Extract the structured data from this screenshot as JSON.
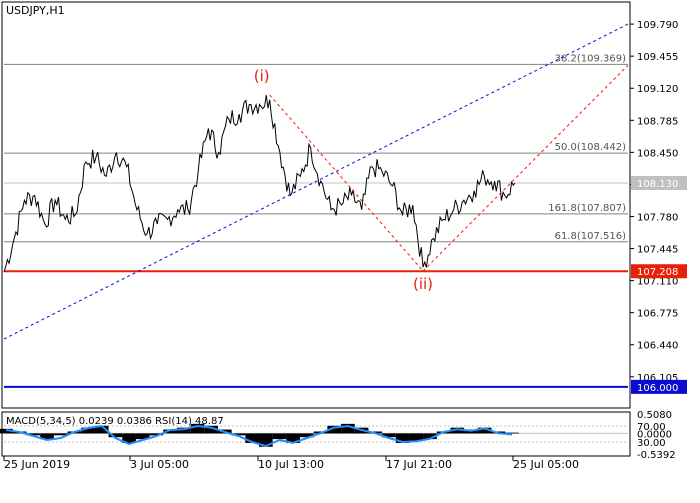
{
  "symbol_label": "USDJPY,H1",
  "price_axis": {
    "ticks": [
      "109.790",
      "109.455",
      "109.120",
      "108.785",
      "108.450",
      "108.115",
      "107.780",
      "107.445",
      "107.110",
      "106.775",
      "106.440",
      "106.105"
    ],
    "tags": [
      {
        "value": "108.130",
        "bg": "#c0c0c0",
        "fg": "#ffffff"
      },
      {
        "value": "107.208",
        "bg": "#e8200a",
        "fg": "#ffffff"
      },
      {
        "value": "106.000",
        "bg": "#0a0ad0",
        "fg": "#ffffff"
      }
    ]
  },
  "fib_labels": {
    "f382": "38.2(109.369)",
    "f500": "50.0(108.442)",
    "f1618": "161.8(107.807)",
    "f618": "61.8(107.516)"
  },
  "wave_labels": {
    "w1": "(i)",
    "w2": "(ii)"
  },
  "indicator": {
    "label": "MACD(5,34,5) 0.0239 0.0386 RSI(14) 48.87",
    "scale": [
      "0.5080",
      "70.00",
      "0.0000",
      "30.00",
      "-0.5392"
    ]
  },
  "time_axis": [
    "25 Jun 2019",
    "3 Jul 05:00",
    "10 Jul 13:00",
    "17 Jul 21:00",
    "25 Jul 05:00"
  ],
  "colors": {
    "price_line": "#000000",
    "support_line": "#e8200a",
    "target_line": "#0a0ad0",
    "trend_dotted": "#0a0ad0",
    "wave_dashed": "#e8200a",
    "fib_line": "#808080",
    "rsi_line": "#1e90ff",
    "wave_label": "#e8200a"
  },
  "chart_data": {
    "type": "line",
    "price_series": [
      [
        "25 Jun 2019",
        107.2
      ],
      [
        "",
        107.55
      ],
      [
        "",
        107.95
      ],
      [
        "",
        108.0
      ],
      [
        "",
        107.7
      ],
      [
        "",
        107.95
      ],
      [
        "",
        107.75
      ],
      [
        "",
        107.8
      ],
      [
        "",
        108.35
      ],
      [
        "",
        108.4
      ],
      [
        "",
        108.2
      ],
      [
        "",
        108.45
      ],
      [
        "",
        108.3
      ],
      [
        "",
        107.85
      ],
      [
        "3 Jul 05:00",
        107.6
      ],
      [
        "",
        107.7
      ],
      [
        "",
        107.75
      ],
      [
        "",
        107.85
      ],
      [
        "",
        107.85
      ],
      [
        "",
        108.25
      ],
      [
        "",
        108.7
      ],
      [
        "",
        108.45
      ],
      [
        "",
        108.8
      ],
      [
        "",
        108.85
      ],
      [
        "",
        108.95
      ],
      [
        "",
        108.95
      ],
      [
        "",
        109.0
      ],
      [
        "10 Jul 13:00",
        108.45
      ],
      [
        "",
        108.0
      ],
      [
        "",
        108.2
      ],
      [
        "",
        108.5
      ],
      [
        "",
        108.15
      ],
      [
        "",
        107.85
      ],
      [
        "",
        107.9
      ],
      [
        "",
        108.0
      ],
      [
        "",
        107.85
      ],
      [
        "",
        108.3
      ],
      [
        "",
        108.25
      ],
      [
        "",
        108.1
      ],
      [
        "17 Jul 21:00",
        107.8
      ],
      [
        "",
        107.9
      ],
      [
        "",
        107.25
      ],
      [
        "",
        107.55
      ],
      [
        "",
        107.75
      ],
      [
        "",
        107.85
      ],
      [
        "",
        107.95
      ],
      [
        "",
        108.05
      ],
      [
        "",
        108.2
      ],
      [
        "",
        108.15
      ],
      [
        "",
        108.0
      ],
      [
        "25 Jul 05:00",
        108.13
      ]
    ],
    "horizontal_levels": [
      {
        "label": "107.208",
        "value": 107.208
      },
      {
        "label": "106.000",
        "value": 106.0
      }
    ],
    "fibonacci_levels": [
      {
        "label": "38.2(109.369)",
        "value": 109.369
      },
      {
        "label": "50.0(108.442)",
        "value": 108.442
      },
      {
        "label": "161.8(107.807)",
        "value": 107.807
      },
      {
        "label": "61.8(107.516)",
        "value": 107.516
      }
    ],
    "trend_channel": [
      {
        "from": [
          "25 Jun 2019",
          106.5
        ],
        "to": [
          "25 Jul 05:00",
          109.79
        ]
      }
    ],
    "wave_path": [
      {
        "label": "(i)",
        "x": "10 Jul 13:00",
        "value": 109.05
      },
      {
        "label": "(ii)",
        "x": "17 Jul 21:00",
        "value": 107.21
      }
    ],
    "indicator_series": {
      "macd": [
        0.12,
        0.05,
        -0.05,
        -0.15,
        -0.05,
        0.05,
        0.15,
        0.2,
        -0.1,
        -0.25,
        -0.15,
        -0.05,
        0.1,
        0.15,
        0.25,
        0.2,
        0.1,
        -0.05,
        -0.25,
        -0.35,
        -0.15,
        -0.25,
        -0.1,
        0.05,
        0.2,
        0.25,
        0.15,
        0.05,
        -0.1,
        -0.25,
        -0.2,
        -0.15,
        0.05,
        0.15,
        0.1,
        0.15,
        0.05,
        0.02
      ],
      "rsi": [
        60,
        55,
        45,
        35,
        40,
        55,
        65,
        70,
        40,
        25,
        35,
        45,
        60,
        62,
        70,
        66,
        55,
        45,
        30,
        20,
        35,
        28,
        40,
        52,
        66,
        70,
        60,
        52,
        40,
        30,
        32,
        38,
        55,
        62,
        58,
        64,
        52,
        48.87
      ]
    },
    "price_range": [
      105.8,
      110.0
    ],
    "indicator_range": [
      -0.5392,
      0.508
    ],
    "rsi_range": [
      0,
      100
    ]
  }
}
